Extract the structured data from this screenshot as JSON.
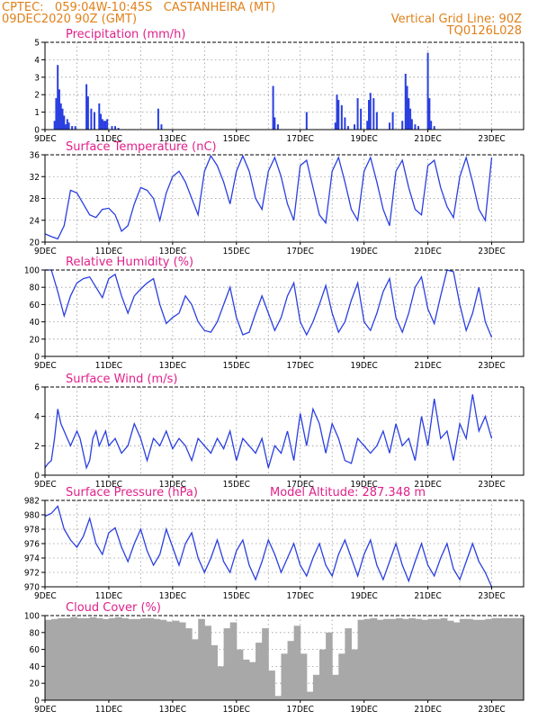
{
  "header": {
    "line1_left": "CPTEC:   059:04W-10:45S   CASTANHEIRA (MT)",
    "line2_left": "09DEC2020 90Z (GMT)",
    "line1_right": "Vertical Grid Line: 90Z",
    "line2_right": "TQ0126L028"
  },
  "colors": {
    "header": "#e0801a",
    "title": "#e0208a",
    "series": "#2a3fe0",
    "cloud": "#a8a8a8"
  },
  "x_ticks": [
    "9DEC",
    "11DEC",
    "13DEC",
    "15DEC",
    "17DEC",
    "19DEC",
    "21DEC",
    "23DEC"
  ],
  "chart_data": [
    {
      "type": "bar",
      "title": "Precipitation (mm/h)",
      "ylim": [
        0,
        5
      ],
      "yticks": [
        0,
        1,
        2,
        3,
        4,
        5
      ],
      "x": [
        0.3,
        0.35,
        0.4,
        0.45,
        0.5,
        0.55,
        0.6,
        0.65,
        0.7,
        0.75,
        0.85,
        0.95,
        1.3,
        1.35,
        1.45,
        1.55,
        1.7,
        1.75,
        1.8,
        1.85,
        1.9,
        1.95,
        2.1,
        2.2,
        2.3,
        3.55,
        3.65,
        7.15,
        7.2,
        7.3,
        8.2,
        9.1,
        9.15,
        9.2,
        9.3,
        9.4,
        9.5,
        9.7,
        9.8,
        9.9,
        10.1,
        10.15,
        10.2,
        10.3,
        10.4,
        10.8,
        10.9,
        11.2,
        11.3,
        11.35,
        11.4,
        11.45,
        11.5,
        11.6,
        11.7,
        12.0,
        12.05,
        12.1,
        12.2
      ],
      "values": [
        0.5,
        1.8,
        3.7,
        2.3,
        1.5,
        1.2,
        0.8,
        0.3,
        0.6,
        0.4,
        0.2,
        0.2,
        2.6,
        1.9,
        1.2,
        1.0,
        1.5,
        0.9,
        0.6,
        0.5,
        0.5,
        0.6,
        0.2,
        0.2,
        0.1,
        1.2,
        0.3,
        2.5,
        0.7,
        0.3,
        1.0,
        0.4,
        2.0,
        1.7,
        1.4,
        0.7,
        0.2,
        0.3,
        1.8,
        1.2,
        0.5,
        1.7,
        2.1,
        1.8,
        1.0,
        0.4,
        1.0,
        0.5,
        3.2,
        2.5,
        1.8,
        1.2,
        0.6,
        0.3,
        0.2,
        4.4,
        1.8,
        0.5,
        0.2
      ]
    },
    {
      "type": "line",
      "title": "Surface Temperature (nC)",
      "ylim": [
        20,
        36
      ],
      "yticks": [
        20,
        24,
        28,
        32,
        36
      ],
      "x": [
        0,
        0.2,
        0.4,
        0.6,
        0.8,
        1.0,
        1.2,
        1.4,
        1.6,
        1.8,
        2.0,
        2.2,
        2.4,
        2.6,
        2.8,
        3.0,
        3.2,
        3.4,
        3.6,
        3.8,
        4.0,
        4.2,
        4.4,
        4.6,
        4.8,
        5.0,
        5.2,
        5.4,
        5.6,
        5.8,
        6.0,
        6.2,
        6.4,
        6.6,
        6.8,
        7.0,
        7.2,
        7.4,
        7.6,
        7.8,
        8.0,
        8.2,
        8.4,
        8.6,
        8.8,
        9.0,
        9.2,
        9.4,
        9.6,
        9.8,
        10.0,
        10.2,
        10.4,
        10.6,
        10.8,
        11.0,
        11.2,
        11.4,
        11.6,
        11.8,
        12.0,
        12.2,
        12.4,
        12.6,
        12.8,
        13.0,
        13.2,
        13.4,
        13.6,
        13.8,
        14.0
      ],
      "values": [
        21.5,
        21.0,
        20.6,
        23.0,
        29.5,
        29.0,
        27.0,
        25.0,
        24.5,
        26.0,
        26.2,
        25.0,
        22.0,
        23.0,
        27.0,
        30.0,
        29.5,
        28.0,
        24.0,
        29.0,
        32.0,
        33.0,
        31.0,
        28.0,
        25.0,
        33.0,
        35.8,
        34.0,
        31.0,
        27.0,
        33.0,
        35.8,
        33.0,
        28.0,
        26.0,
        33.0,
        35.5,
        32.0,
        27.0,
        24.0,
        34.0,
        35.0,
        30.0,
        25.0,
        23.5,
        33.0,
        35.5,
        31.0,
        26.0,
        24.0,
        33.0,
        35.5,
        31.0,
        26.0,
        23.0,
        33.0,
        35.0,
        30.0,
        26.0,
        25.0,
        34.0,
        35.0,
        30.0,
        26.5,
        24.5,
        32.0,
        35.5,
        31.0,
        26.0,
        24.0,
        35.5
      ]
    },
    {
      "type": "line",
      "title": "Relative Humidity (%)",
      "ylim": [
        0,
        100
      ],
      "yticks": [
        0,
        20,
        40,
        60,
        80,
        100
      ],
      "x": [
        0,
        0.2,
        0.4,
        0.6,
        0.8,
        1.0,
        1.2,
        1.4,
        1.6,
        1.8,
        2.0,
        2.2,
        2.4,
        2.6,
        2.8,
        3.0,
        3.2,
        3.4,
        3.6,
        3.8,
        4.0,
        4.2,
        4.4,
        4.6,
        4.8,
        5.0,
        5.2,
        5.4,
        5.6,
        5.8,
        6.0,
        6.2,
        6.4,
        6.6,
        6.8,
        7.0,
        7.2,
        7.4,
        7.6,
        7.8,
        8.0,
        8.2,
        8.4,
        8.6,
        8.8,
        9.0,
        9.2,
        9.4,
        9.6,
        9.8,
        10.0,
        10.2,
        10.4,
        10.6,
        10.8,
        11.0,
        11.2,
        11.4,
        11.6,
        11.8,
        12.0,
        12.2,
        12.4,
        12.6,
        12.8,
        13.0,
        13.2,
        13.4,
        13.6,
        13.8,
        14.0
      ],
      "values": [
        100,
        100,
        75,
        47,
        70,
        85,
        90,
        92,
        80,
        68,
        90,
        95,
        70,
        50,
        70,
        78,
        85,
        90,
        60,
        38,
        45,
        50,
        70,
        60,
        40,
        30,
        28,
        40,
        60,
        80,
        45,
        25,
        28,
        50,
        70,
        50,
        30,
        45,
        70,
        85,
        40,
        25,
        40,
        60,
        82,
        50,
        28,
        40,
        65,
        85,
        40,
        30,
        50,
        75,
        90,
        45,
        28,
        50,
        80,
        92,
        55,
        38,
        70,
        100,
        98,
        60,
        30,
        50,
        80,
        40,
        22
      ]
    },
    {
      "type": "line",
      "title": "Surface Wind (m/s)",
      "ylim": [
        0,
        6
      ],
      "yticks": [
        0,
        2,
        4,
        6
      ],
      "x": [
        0,
        0.1,
        0.2,
        0.3,
        0.4,
        0.5,
        0.6,
        0.7,
        0.8,
        0.9,
        1.0,
        1.1,
        1.2,
        1.3,
        1.4,
        1.5,
        1.6,
        1.7,
        1.8,
        1.9,
        2.0,
        2.2,
        2.4,
        2.6,
        2.8,
        3.0,
        3.2,
        3.4,
        3.6,
        3.8,
        4.0,
        4.2,
        4.4,
        4.6,
        4.8,
        5.0,
        5.2,
        5.4,
        5.6,
        5.8,
        6.0,
        6.2,
        6.4,
        6.6,
        6.8,
        7.0,
        7.2,
        7.4,
        7.6,
        7.8,
        8.0,
        8.2,
        8.4,
        8.6,
        8.8,
        9.0,
        9.2,
        9.4,
        9.6,
        9.8,
        10.0,
        10.2,
        10.4,
        10.6,
        10.8,
        11.0,
        11.2,
        11.4,
        11.6,
        11.8,
        12.0,
        12.2,
        12.4,
        12.6,
        12.8,
        13.0,
        13.2,
        13.4,
        13.6,
        13.8,
        14.0
      ],
      "values": [
        0.5,
        0.8,
        1.0,
        2.5,
        4.5,
        3.5,
        3.0,
        2.5,
        2.0,
        2.5,
        3.0,
        2.5,
        1.5,
        0.5,
        1.0,
        2.5,
        3.0,
        2.0,
        2.5,
        3.0,
        2.0,
        2.5,
        1.5,
        2.0,
        3.5,
        2.5,
        1.0,
        2.5,
        2.0,
        3.0,
        1.8,
        2.5,
        2.0,
        1.0,
        2.5,
        2.0,
        1.5,
        2.5,
        1.8,
        3.0,
        1.0,
        2.5,
        2.0,
        1.5,
        2.5,
        0.5,
        2.0,
        1.5,
        3.0,
        1.0,
        4.2,
        2.0,
        4.5,
        3.5,
        1.5,
        3.5,
        2.5,
        1.0,
        0.8,
        2.5,
        2.0,
        1.5,
        2.0,
        3.0,
        1.5,
        3.5,
        2.0,
        2.5,
        1.0,
        4.0,
        2.0,
        5.2,
        2.5,
        3.0,
        1.0,
        3.5,
        2.5,
        5.5,
        3.0,
        4.0,
        2.5
      ]
    },
    {
      "type": "line",
      "title": "Surface Pressure (hPa)",
      "annotation": "Model Altitude: 287.348 m",
      "ylim": [
        970,
        982
      ],
      "yticks": [
        970,
        972,
        974,
        976,
        978,
        980,
        982
      ],
      "x": [
        0,
        0.2,
        0.4,
        0.6,
        0.8,
        1.0,
        1.2,
        1.4,
        1.6,
        1.8,
        2.0,
        2.2,
        2.4,
        2.6,
        2.8,
        3.0,
        3.2,
        3.4,
        3.6,
        3.8,
        4.0,
        4.2,
        4.4,
        4.6,
        4.8,
        5.0,
        5.2,
        5.4,
        5.6,
        5.8,
        6.0,
        6.2,
        6.4,
        6.6,
        6.8,
        7.0,
        7.2,
        7.4,
        7.6,
        7.8,
        8.0,
        8.2,
        8.4,
        8.6,
        8.8,
        9.0,
        9.2,
        9.4,
        9.6,
        9.8,
        10.0,
        10.2,
        10.4,
        10.6,
        10.8,
        11.0,
        11.2,
        11.4,
        11.6,
        11.8,
        12.0,
        12.2,
        12.4,
        12.6,
        12.8,
        13.0,
        13.2,
        13.4,
        13.6,
        13.8,
        14.0
      ],
      "values": [
        979.8,
        980.2,
        981.2,
        978.0,
        976.5,
        975.5,
        977.0,
        979.5,
        976.0,
        974.5,
        977.5,
        978.2,
        975.5,
        973.5,
        976.0,
        978.0,
        975.0,
        973.0,
        974.5,
        978.0,
        975.5,
        973.0,
        976.0,
        977.5,
        974.0,
        972.0,
        974.0,
        976.5,
        973.5,
        972.0,
        975.0,
        976.5,
        973.0,
        971.0,
        973.5,
        976.5,
        974.5,
        972.0,
        974.0,
        976.0,
        973.0,
        971.5,
        974.0,
        976.0,
        973.0,
        971.5,
        974.5,
        976.5,
        974.0,
        971.5,
        974.5,
        976.5,
        973.0,
        971.0,
        973.5,
        976.0,
        973.0,
        970.8,
        973.5,
        976.0,
        973.0,
        971.5,
        974.0,
        976.0,
        972.5,
        971.0,
        973.5,
        976.0,
        973.5,
        972.0,
        970.0
      ]
    },
    {
      "type": "area",
      "title": "Cloud Cover (%)",
      "ylim": [
        0,
        100
      ],
      "yticks": [
        0,
        20,
        40,
        60,
        80,
        100
      ],
      "x": [
        0,
        0.2,
        0.4,
        0.6,
        0.8,
        1.0,
        1.2,
        1.4,
        1.6,
        1.8,
        2.0,
        2.2,
        2.4,
        2.6,
        2.8,
        3.0,
        3.2,
        3.4,
        3.6,
        3.8,
        4.0,
        4.2,
        4.4,
        4.6,
        4.8,
        5.0,
        5.2,
        5.4,
        5.6,
        5.8,
        6.0,
        6.2,
        6.4,
        6.6,
        6.8,
        7.0,
        7.2,
        7.4,
        7.6,
        7.8,
        8.0,
        8.2,
        8.4,
        8.6,
        8.8,
        9.0,
        9.2,
        9.4,
        9.6,
        9.8,
        10.0,
        10.2,
        10.4,
        10.6,
        10.8,
        11.0,
        11.2,
        11.4,
        11.6,
        11.8,
        12.0,
        12.2,
        12.4,
        12.6,
        12.8,
        13.0,
        13.2,
        13.4,
        13.6,
        13.8,
        14.0
      ],
      "values": [
        95,
        96,
        97,
        97,
        98,
        97,
        97,
        98,
        97,
        96,
        97,
        98,
        97,
        96,
        96,
        97,
        97,
        96,
        95,
        93,
        94,
        92,
        85,
        72,
        96,
        88,
        65,
        40,
        85,
        92,
        60,
        48,
        45,
        68,
        85,
        35,
        5,
        55,
        70,
        88,
        55,
        10,
        30,
        60,
        80,
        30,
        55,
        85,
        60,
        95,
        96,
        97,
        95,
        96,
        96,
        97,
        96,
        97,
        96,
        95,
        96,
        96,
        97,
        94,
        92,
        96,
        96,
        95,
        95,
        96,
        97
      ]
    }
  ]
}
